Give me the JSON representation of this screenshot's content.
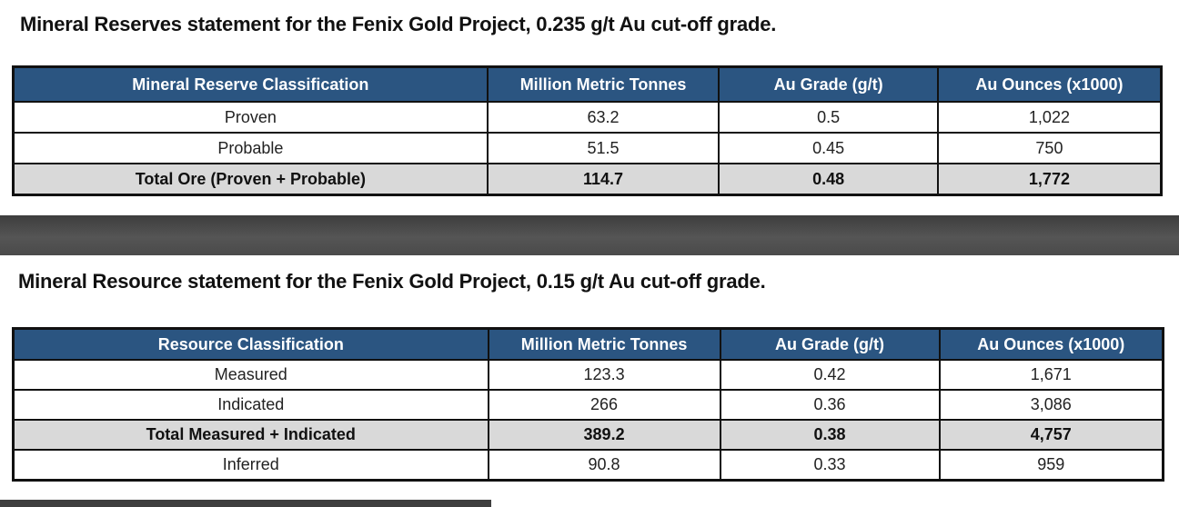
{
  "reserves": {
    "title": "Mineral Reserves statement for the Fenix Gold Project, 0.235 g/t Au cut-off grade.",
    "headers": [
      "Mineral Reserve Classification",
      "Million Metric Tonnes",
      "Au Grade (g/t)",
      "Au Ounces (x1000)"
    ],
    "rows": [
      [
        "Proven",
        "63.2",
        "0.5",
        "1,022"
      ],
      [
        "Probable",
        "51.5",
        "0.45",
        "750"
      ],
      [
        "Total Ore (Proven + Probable)",
        "114.7",
        "0.48",
        "1,772"
      ]
    ]
  },
  "resources": {
    "title": "Mineral Resource statement for the Fenix Gold Project, 0.15 g/t Au cut-off grade.",
    "headers": [
      "Resource Classification",
      "Million Metric Tonnes",
      "Au Grade (g/t)",
      "Au Ounces (x1000)"
    ],
    "rows": [
      [
        "Measured",
        "123.3",
        "0.42",
        "1,671"
      ],
      [
        "Indicated",
        "266",
        "0.36",
        "3,086"
      ],
      [
        "Total Measured + Indicated",
        "389.2",
        "0.38",
        "4,757"
      ],
      [
        "Inferred",
        "90.8",
        "0.33",
        "959"
      ]
    ]
  },
  "colors": {
    "header_bg": "#2b5581",
    "total_row_bg": "#d9d9d9",
    "divider_band": "#4a4a4a"
  }
}
